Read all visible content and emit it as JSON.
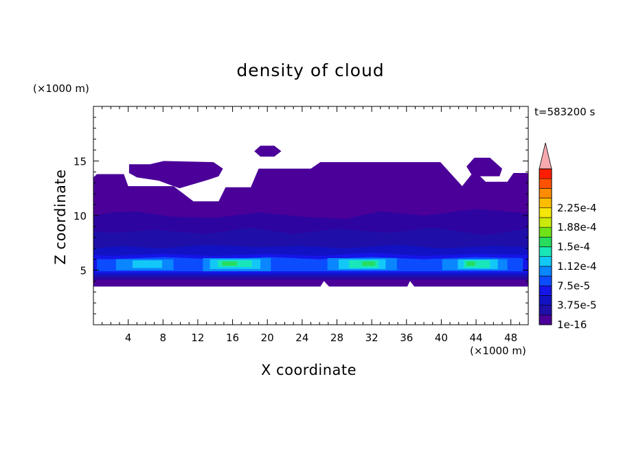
{
  "chart_data": {
    "type": "heatmap",
    "title": "density of cloud",
    "xlabel": "X coordinate",
    "ylabel": "Z coordinate",
    "x_unit": "(×1000 m)",
    "y_unit": "(×1000 m)",
    "time_label": "t=583200 s",
    "xlim": [
      0,
      50
    ],
    "ylim": [
      0,
      20
    ],
    "x_ticks": [
      "4",
      "8",
      "12",
      "16",
      "20",
      "24",
      "28",
      "32",
      "36",
      "40",
      "44",
      "48"
    ],
    "y_ticks": [
      "5",
      "10",
      "15"
    ],
    "colorbar": {
      "labels": [
        "1e-16",
        "3.75e-5",
        "7.5e-5",
        "1.12e-4",
        "1.5e-4",
        "1.88e-4",
        "2.25e-4"
      ],
      "colors": [
        "#4b0099",
        "#1f0fa8",
        "#1212c4",
        "#1515e8",
        "#0c4cff",
        "#0a86ff",
        "#13c8f6",
        "#19e7b9",
        "#27dc5e",
        "#6fe21a",
        "#c9ea0a",
        "#f5e60a",
        "#ffbd00",
        "#ff8c00",
        "#ff5200",
        "#ff1d00",
        "#f8a9b0"
      ]
    },
    "field_layers": [
      {
        "level": 0,
        "color": "#4b0099",
        "pts": [
          [
            0,
            3.5
          ],
          [
            26.1,
            3.5
          ],
          [
            26.5,
            4.0
          ],
          [
            27.1,
            3.5
          ],
          [
            36.1,
            3.5
          ],
          [
            36.4,
            4.0
          ],
          [
            36.9,
            3.5
          ],
          [
            50,
            3.5
          ],
          [
            50,
            13.9
          ],
          [
            48.3,
            13.9
          ],
          [
            47.6,
            13.1
          ],
          [
            45.1,
            13.1
          ],
          [
            44.2,
            13.8
          ],
          [
            43.6,
            13.9
          ],
          [
            42.4,
            12.7
          ],
          [
            39.9,
            14.9
          ],
          [
            26.1,
            14.9
          ],
          [
            25.0,
            14.3
          ],
          [
            19.0,
            14.3
          ],
          [
            18.1,
            12.6
          ],
          [
            15.2,
            12.6
          ],
          [
            14.4,
            11.3
          ],
          [
            11.5,
            11.3
          ],
          [
            9.2,
            12.7
          ],
          [
            7.9,
            12.7
          ],
          [
            4.0,
            12.7
          ],
          [
            3.5,
            13.8
          ],
          [
            0.4,
            13.8
          ],
          [
            0,
            13.5
          ]
        ]
      },
      {
        "level": 0,
        "color": "#4b0099",
        "pts": [
          [
            4.1,
            13.9
          ],
          [
            4.1,
            14.7
          ],
          [
            6.5,
            14.7
          ],
          [
            8.1,
            15.0
          ],
          [
            13.8,
            14.9
          ],
          [
            14.9,
            14.3
          ],
          [
            14.4,
            13.6
          ],
          [
            13.3,
            13.3
          ],
          [
            9.9,
            12.5
          ],
          [
            7.5,
            13.2
          ],
          [
            5.0,
            13.5
          ]
        ]
      },
      {
        "level": 0,
        "color": "#4b0099",
        "pts": [
          [
            18.5,
            15.9
          ],
          [
            19.2,
            16.4
          ],
          [
            20.8,
            16.4
          ],
          [
            21.6,
            15.9
          ],
          [
            20.8,
            15.4
          ],
          [
            19.2,
            15.4
          ]
        ]
      },
      {
        "level": 0,
        "color": "#4b0099",
        "pts": [
          [
            42.9,
            14.5
          ],
          [
            43.8,
            15.3
          ],
          [
            45.6,
            15.3
          ],
          [
            47.0,
            14.3
          ],
          [
            46.7,
            13.6
          ],
          [
            43.6,
            13.6
          ]
        ]
      },
      {
        "level": 1,
        "color": "#2e04a0",
        "pts": [
          [
            0,
            4.1
          ],
          [
            50,
            4.1
          ],
          [
            50,
            10.2
          ],
          [
            44,
            10.6
          ],
          [
            38,
            10.0
          ],
          [
            33,
            10.4
          ],
          [
            29,
            9.7
          ],
          [
            24,
            9.9
          ],
          [
            19,
            10.3
          ],
          [
            14,
            9.8
          ],
          [
            9,
            9.9
          ],
          [
            5,
            10.4
          ],
          [
            2,
            10.3
          ],
          [
            0,
            10.0
          ]
        ]
      },
      {
        "level": 2,
        "color": "#1f0fa8",
        "pts": [
          [
            0,
            4.3
          ],
          [
            50,
            4.3
          ],
          [
            50,
            8.8
          ],
          [
            45,
            8.2
          ],
          [
            39,
            8.9
          ],
          [
            34,
            8.4
          ],
          [
            28,
            8.8
          ],
          [
            23,
            8.3
          ],
          [
            18,
            8.9
          ],
          [
            13,
            8.3
          ],
          [
            7,
            8.7
          ],
          [
            2,
            8.4
          ],
          [
            0,
            8.6
          ]
        ]
      },
      {
        "level": 3,
        "color": "#1212c4",
        "pts": [
          [
            0,
            4.5
          ],
          [
            50,
            4.5
          ],
          [
            50,
            7.1
          ],
          [
            46,
            7.2
          ],
          [
            40,
            7.0
          ],
          [
            35,
            7.3
          ],
          [
            29,
            7.0
          ],
          [
            24,
            7.2
          ],
          [
            19,
            7.1
          ],
          [
            13,
            7.3
          ],
          [
            8,
            7.0
          ],
          [
            3,
            7.2
          ],
          [
            0,
            7.0
          ]
        ]
      },
      {
        "level": 4,
        "color": "#1515e8",
        "pts": [
          [
            0,
            4.7
          ],
          [
            50,
            4.7
          ],
          [
            50,
            6.4
          ],
          [
            44,
            6.5
          ],
          [
            38,
            6.3
          ],
          [
            32,
            6.6
          ],
          [
            26,
            6.3
          ],
          [
            20,
            6.5
          ],
          [
            14,
            6.3
          ],
          [
            8,
            6.5
          ],
          [
            2,
            6.3
          ],
          [
            0,
            6.4
          ]
        ]
      },
      {
        "level": 5,
        "color": "#0c4cff",
        "pts": [
          [
            0.4,
            4.9
          ],
          [
            49.4,
            4.9
          ],
          [
            49.4,
            6.1
          ],
          [
            44,
            6.2
          ],
          [
            38,
            6.0
          ],
          [
            32,
            6.2
          ],
          [
            26,
            6.0
          ],
          [
            20,
            6.2
          ],
          [
            14,
            6.0
          ],
          [
            8,
            6.2
          ],
          [
            2,
            6.0
          ],
          [
            0.4,
            6.0
          ]
        ]
      },
      {
        "level": 6,
        "color": "#0a86ff",
        "pts": [
          [
            2.6,
            5.0
          ],
          [
            9.2,
            5.0
          ],
          [
            9.2,
            6.0
          ],
          [
            2.6,
            6.0
          ]
        ]
      },
      {
        "level": 6,
        "color": "#0a86ff",
        "pts": [
          [
            12.6,
            4.9
          ],
          [
            20.4,
            4.9
          ],
          [
            20.4,
            6.1
          ],
          [
            12.6,
            6.1
          ]
        ]
      },
      {
        "level": 6,
        "color": "#0a86ff",
        "pts": [
          [
            26.9,
            5.0
          ],
          [
            34.9,
            5.0
          ],
          [
            34.9,
            6.1
          ],
          [
            26.9,
            6.1
          ]
        ]
      },
      {
        "level": 6,
        "color": "#0a86ff",
        "pts": [
          [
            40.1,
            5.0
          ],
          [
            47.6,
            5.0
          ],
          [
            47.6,
            6.0
          ],
          [
            40.1,
            6.0
          ]
        ]
      },
      {
        "level": 7,
        "color": "#13c8f6",
        "pts": [
          [
            4.5,
            5.2
          ],
          [
            7.9,
            5.2
          ],
          [
            7.9,
            5.9
          ],
          [
            4.5,
            5.9
          ]
        ]
      },
      {
        "level": 7,
        "color": "#13c8f6",
        "pts": [
          [
            13.4,
            5.1
          ],
          [
            19.2,
            5.1
          ],
          [
            19.2,
            6.0
          ],
          [
            13.4,
            6.0
          ]
        ]
      },
      {
        "level": 7,
        "color": "#13c8f6",
        "pts": [
          [
            28.2,
            5.1
          ],
          [
            33.6,
            5.1
          ],
          [
            33.6,
            6.0
          ],
          [
            28.2,
            6.0
          ]
        ]
      },
      {
        "level": 7,
        "color": "#13c8f6",
        "pts": [
          [
            41.9,
            5.1
          ],
          [
            46.5,
            5.1
          ],
          [
            46.5,
            6.0
          ],
          [
            41.9,
            6.0
          ]
        ]
      },
      {
        "level": 8,
        "color": "#19e7b9",
        "pts": [
          [
            14.3,
            5.3
          ],
          [
            18.2,
            5.3
          ],
          [
            18.2,
            5.9
          ],
          [
            14.3,
            5.9
          ]
        ]
      },
      {
        "level": 8,
        "color": "#19e7b9",
        "pts": [
          [
            29.4,
            5.2
          ],
          [
            32.8,
            5.2
          ],
          [
            32.8,
            5.9
          ],
          [
            29.4,
            5.9
          ]
        ]
      },
      {
        "level": 8,
        "color": "#19e7b9",
        "pts": [
          [
            42.6,
            5.2
          ],
          [
            45.6,
            5.2
          ],
          [
            45.6,
            5.9
          ],
          [
            42.6,
            5.9
          ]
        ]
      },
      {
        "level": 9,
        "color": "#27dc5e",
        "pts": [
          [
            14.8,
            5.4
          ],
          [
            16.5,
            5.4
          ],
          [
            16.5,
            5.8
          ],
          [
            14.8,
            5.8
          ]
        ]
      },
      {
        "level": 9,
        "color": "#27dc5e",
        "pts": [
          [
            30.9,
            5.4
          ],
          [
            32.4,
            5.4
          ],
          [
            32.4,
            5.8
          ],
          [
            30.9,
            5.8
          ]
        ]
      },
      {
        "level": 9,
        "color": "#27dc5e",
        "pts": [
          [
            42.9,
            5.4
          ],
          [
            43.9,
            5.4
          ],
          [
            43.9,
            5.8
          ],
          [
            42.9,
            5.8
          ]
        ]
      }
    ]
  }
}
